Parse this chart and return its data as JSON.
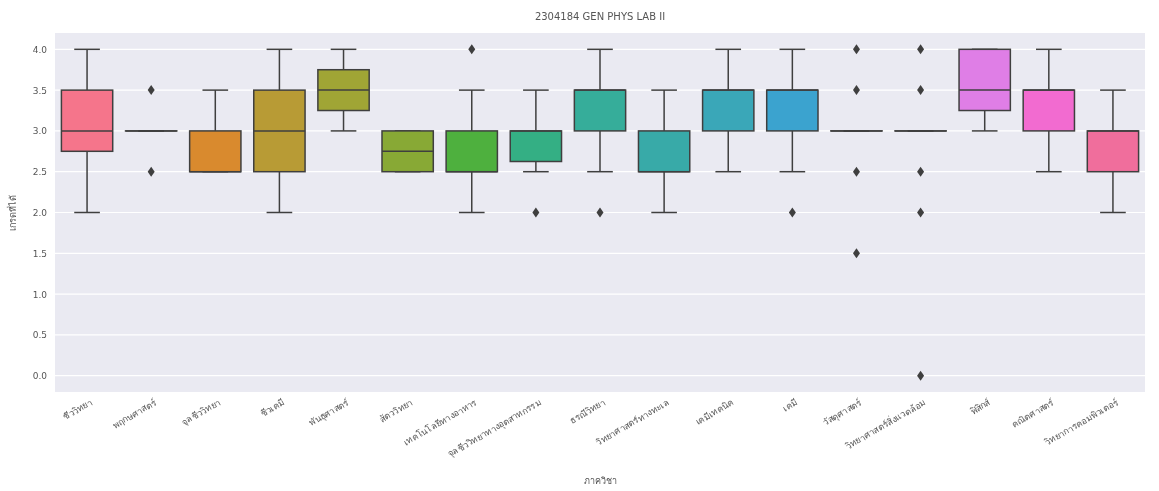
{
  "chart_data": {
    "type": "box",
    "title": "2304184 GEN PHYS LAB II",
    "xlabel": "ภาควิชา",
    "ylabel": "เกรดที่ได้",
    "categories": [
      "ชีววิทยา",
      "พฤกษศาสตร์",
      "จุลชีววิทยา",
      "ชีวเคมี",
      "พันธุศาสตร์",
      "สัตววิทยา",
      "เทคโนโลยีทางอาหาร",
      "จุลชีววิทยาทางอุตสาหกรรม",
      "ธรณีวิทยา",
      "วิทยาศาสตร์ทางทะเล",
      "เคมีเทคนิค",
      "เคมี",
      "วัสดุศาสตร์",
      "วิทยาศาสตร์สิ่งแวดล้อม",
      "ฟิสิกส์",
      "คณิตศาสตร์",
      "วิทยาการคอมพิวเตอร์"
    ],
    "colors": [
      "#f5758b",
      "#ec7d50",
      "#d98a2e",
      "#b89b35",
      "#a0a535",
      "#88a935",
      "#4eb03e",
      "#34af84",
      "#36ad9a",
      "#38aaa8",
      "#3aa7b8",
      "#3ba3cf",
      "#8a9df0",
      "#b48cf2",
      "#df7ee6",
      "#f26bd0",
      "#f06e9c"
    ],
    "boxes": [
      {
        "low": 2.0,
        "q1": 2.75,
        "median": 3.0,
        "q3": 3.5,
        "high": 4.0
      },
      {
        "low": 3.0,
        "q1": 3.0,
        "median": 3.0,
        "q3": 3.0,
        "high": 3.0,
        "outliers": [
          3.5,
          2.5
        ]
      },
      {
        "low": 2.5,
        "q1": 2.5,
        "median": 2.5,
        "q3": 3.0,
        "high": 3.5
      },
      {
        "low": 2.0,
        "q1": 2.5,
        "median": 3.0,
        "q3": 3.5,
        "high": 4.0
      },
      {
        "low": 3.0,
        "q1": 3.25,
        "median": 3.5,
        "q3": 3.75,
        "high": 4.0
      },
      {
        "low": 2.5,
        "q1": 2.5,
        "median": 2.75,
        "q3": 3.0,
        "high": 3.0
      },
      {
        "low": 2.0,
        "q1": 2.5,
        "median": 2.5,
        "q3": 3.0,
        "high": 3.5,
        "outliers": [
          4.0
        ]
      },
      {
        "low": 2.5,
        "q1": 2.625,
        "median": 3.0,
        "q3": 3.0,
        "high": 3.5,
        "outliers": [
          2.0
        ]
      },
      {
        "low": 2.5,
        "q1": 3.0,
        "median": 3.5,
        "q3": 3.5,
        "high": 4.0,
        "outliers": [
          2.0
        ]
      },
      {
        "low": 2.0,
        "q1": 2.5,
        "median": 2.5,
        "q3": 3.0,
        "high": 3.5
      },
      {
        "low": 2.5,
        "q1": 3.0,
        "median": 3.5,
        "q3": 3.5,
        "high": 4.0
      },
      {
        "low": 2.5,
        "q1": 3.0,
        "median": 3.5,
        "q3": 3.5,
        "high": 4.0,
        "outliers": [
          2.0
        ]
      },
      {
        "low": 3.0,
        "q1": 3.0,
        "median": 3.0,
        "q3": 3.0,
        "high": 3.0,
        "outliers": [
          4.0,
          3.5,
          2.5,
          1.5
        ]
      },
      {
        "low": 3.0,
        "q1": 3.0,
        "median": 3.0,
        "q3": 3.0,
        "high": 3.0,
        "outliers": [
          4.0,
          3.5,
          2.5,
          2.0,
          0.0
        ]
      },
      {
        "low": 3.0,
        "q1": 3.25,
        "median": 3.5,
        "q3": 4.0,
        "high": 4.0
      },
      {
        "low": 2.5,
        "q1": 3.0,
        "median": 3.5,
        "q3": 3.5,
        "high": 4.0
      },
      {
        "low": 2.0,
        "q1": 2.5,
        "median": 3.0,
        "q3": 3.0,
        "high": 3.5
      }
    ],
    "ylim": [
      -0.2,
      4.2
    ],
    "yticks": [
      {
        "value": 0,
        "label": "0.0"
      },
      {
        "value": 0.5,
        "label": "0.5"
      },
      {
        "value": 1,
        "label": "1.0"
      },
      {
        "value": 1.5,
        "label": "1.5"
      },
      {
        "value": 2,
        "label": "2.0"
      },
      {
        "value": 2.5,
        "label": "2.5"
      },
      {
        "value": 3,
        "label": "3.0"
      },
      {
        "value": 3.5,
        "label": "3.5"
      },
      {
        "value": 4,
        "label": "4.0"
      }
    ],
    "grid": "y",
    "marker": "diamond"
  }
}
